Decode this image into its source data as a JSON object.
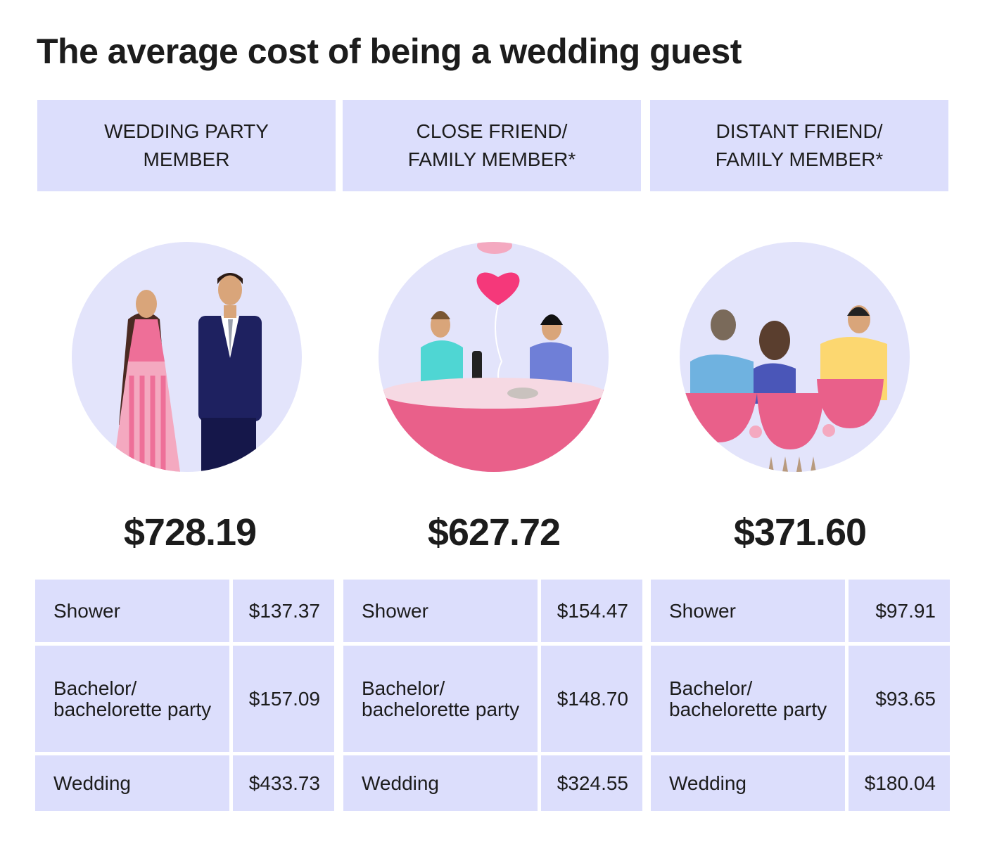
{
  "title": "The average cost of being a wedding guest",
  "columns": [
    {
      "header_line1": "WEDDING PARTY",
      "header_line2": "MEMBER",
      "illustration": "wedding-party-couple",
      "total": "$728.19",
      "rows": [
        {
          "label": "Shower",
          "value": "$137.37"
        },
        {
          "label": "Bachelor/ bachelorette party",
          "value": "$157.09"
        },
        {
          "label": "Wedding",
          "value": "$433.73"
        }
      ]
    },
    {
      "header_line1": "CLOSE FRIEND/",
      "header_line2": "FAMILY MEMBER*",
      "illustration": "dinner-table-heart-balloon",
      "total": "$627.72",
      "rows": [
        {
          "label": "Shower",
          "value": "$154.47"
        },
        {
          "label": "Bachelor/ bachelorette party",
          "value": "$148.70"
        },
        {
          "label": "Wedding",
          "value": "$324.55"
        }
      ]
    },
    {
      "header_line1": "DISTANT FRIEND/",
      "header_line2": "FAMILY MEMBER*",
      "illustration": "guests-in-pews",
      "total": "$371.60",
      "rows": [
        {
          "label": "Shower",
          "value": "$97.91"
        },
        {
          "label": "Bachelor/ bachelorette party",
          "value": "$93.65"
        },
        {
          "label": "Wedding",
          "value": "$180.04"
        }
      ]
    }
  ],
  "colors": {
    "cell": "#dcdefc",
    "circle": "#e3e4fb",
    "pink": "#e9608a"
  }
}
